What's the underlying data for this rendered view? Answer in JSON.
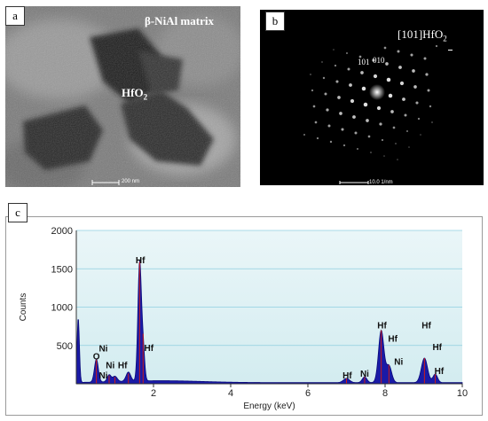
{
  "panel_a": {
    "label": "a",
    "matrix_label": "β-NiAl matrix",
    "precipitate_label": "HfO",
    "precipitate_sub": "2",
    "scale_bar": "200 nm"
  },
  "panel_b": {
    "label": "b",
    "zone_axis_prefix": "[101]HfO",
    "zone_axis_sub": "2",
    "index_1": "101",
    "index_2": "010",
    "scale_bar": "10.0 1/nm"
  },
  "panel_c": {
    "label": "c"
  },
  "chart_data": {
    "type": "area",
    "xlabel": "Energy (keV)",
    "ylabel": "Counts",
    "xlim": [
      0,
      10
    ],
    "ylim": [
      0,
      2000
    ],
    "xticks": [
      "2",
      "4",
      "6",
      "8",
      "10"
    ],
    "yticks": [
      "500",
      "1000",
      "1500",
      "2000"
    ],
    "grid": true,
    "fill_color": "#1a1aa6",
    "marker_color": "#cc1a1a",
    "peaks": [
      {
        "x": 0.05,
        "y": 840,
        "w": 0.03
      },
      {
        "x": 0.52,
        "y": 300,
        "w": 0.05
      },
      {
        "x": 0.85,
        "y": 90,
        "w": 0.05
      },
      {
        "x": 1.0,
        "y": 70,
        "w": 0.06
      },
      {
        "x": 1.35,
        "y": 120,
        "w": 0.06
      },
      {
        "x": 1.64,
        "y": 1540,
        "w": 0.045
      },
      {
        "x": 1.73,
        "y": 430,
        "w": 0.04
      },
      {
        "x": 7.0,
        "y": 55,
        "w": 0.08
      },
      {
        "x": 7.47,
        "y": 75,
        "w": 0.06
      },
      {
        "x": 7.9,
        "y": 680,
        "w": 0.07
      },
      {
        "x": 8.1,
        "y": 220,
        "w": 0.07
      },
      {
        "x": 9.02,
        "y": 320,
        "w": 0.08
      },
      {
        "x": 9.3,
        "y": 110,
        "w": 0.06
      }
    ],
    "markers": [
      0.52,
      0.85,
      1.0,
      1.35,
      1.64,
      1.73,
      7.0,
      7.47,
      7.9,
      8.1,
      9.02,
      9.3
    ],
    "peak_labels": [
      {
        "text": "O",
        "x": 0.52,
        "y": 320
      },
      {
        "text": "Ni",
        "x": 0.7,
        "y": 420
      },
      {
        "text": "Ni",
        "x": 0.88,
        "y": 200
      },
      {
        "text": "Ni",
        "x": 0.7,
        "y": 70
      },
      {
        "text": "Hf",
        "x": 1.2,
        "y": 200
      },
      {
        "text": "Hf",
        "x": 1.66,
        "y": 1570
      },
      {
        "text": "Hf",
        "x": 1.88,
        "y": 430
      },
      {
        "text": "Hf",
        "x": 7.02,
        "y": 70
      },
      {
        "text": "Ni",
        "x": 7.47,
        "y": 90
      },
      {
        "text": "Hf",
        "x": 7.92,
        "y": 720
      },
      {
        "text": "Hf",
        "x": 8.2,
        "y": 550
      },
      {
        "text": "Ni",
        "x": 8.35,
        "y": 250
      },
      {
        "text": "Hf",
        "x": 9.07,
        "y": 720
      },
      {
        "text": "Hf",
        "x": 9.35,
        "y": 440
      },
      {
        "text": "Hf",
        "x": 9.4,
        "y": 130
      }
    ]
  }
}
